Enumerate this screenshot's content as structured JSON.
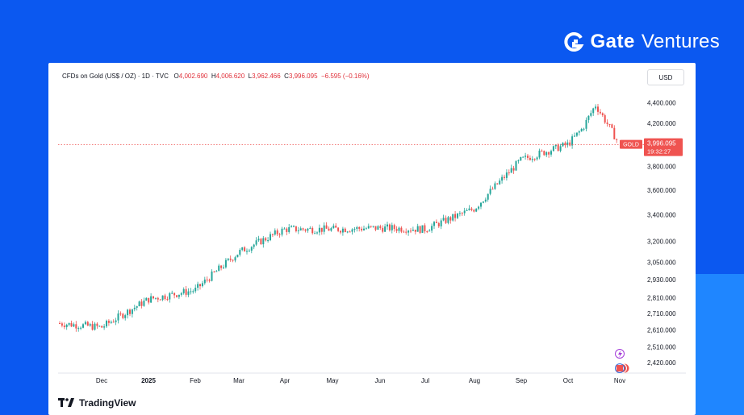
{
  "brand": {
    "name": "Gate",
    "suffix": "Ventures"
  },
  "header": {
    "symbol": "CFDs on Gold (US$ / OZ) · 1D · TVC",
    "o_label": "O",
    "o_value": "4,002.690",
    "h_label": "H",
    "h_value": "4,006.620",
    "l_label": "L",
    "l_value": "3,962.466",
    "c_label": "C",
    "c_value": "3,996.095",
    "change": "−6.595 (−0.16%)"
  },
  "currency_button": "USD",
  "price_badge": {
    "symbol": "GOLD",
    "price": "3,996.095",
    "countdown": "19:32:27"
  },
  "footer": {
    "logo_text": "TradingView"
  },
  "colors": {
    "up": "#26a69a",
    "down": "#ef5350",
    "background": "#0b58f0",
    "accent": "#1f86ff"
  },
  "chart_data": {
    "type": "candlestick",
    "title": "CFDs on Gold (US$ / OZ)",
    "interval": "1D",
    "source": "TVC",
    "scale": "log",
    "x_ticks": [
      "Dec",
      "2025",
      "Feb",
      "Mar",
      "Apr",
      "May",
      "Jun",
      "Jul",
      "Aug",
      "Sep",
      "Oct",
      "Nov"
    ],
    "y_ticks": [
      {
        "label": "4,400.000",
        "value": 4400
      },
      {
        "label": "4,200.000",
        "value": 4200
      },
      {
        "label": "3,800.000",
        "value": 3800
      },
      {
        "label": "3,600.000",
        "value": 3600
      },
      {
        "label": "3,400.000",
        "value": 3400
      },
      {
        "label": "3,200.000",
        "value": 3200
      },
      {
        "label": "3,050.000",
        "value": 3050
      },
      {
        "label": "2,930.000",
        "value": 2930
      },
      {
        "label": "2,810.000",
        "value": 2810
      },
      {
        "label": "2,710.000",
        "value": 2710
      },
      {
        "label": "2,610.000",
        "value": 2610
      },
      {
        "label": "2,510.000",
        "value": 2510
      },
      {
        "label": "2,420.000",
        "value": 2420
      }
    ],
    "ylim": [
      2380,
      4480
    ],
    "last_price": 3996.095,
    "monthly_closes": [
      {
        "month": "Nov 2024",
        "value": 2650
      },
      {
        "month": "Dec 2024",
        "value": 2625
      },
      {
        "month": "Jan 2025",
        "value": 2800
      },
      {
        "month": "Feb 2025",
        "value": 2860
      },
      {
        "month": "Mar 2025",
        "value": 3120
      },
      {
        "month": "Apr 2025",
        "value": 3290
      },
      {
        "month": "May 2025",
        "value": 3290
      },
      {
        "month": "Jun 2025",
        "value": 3300
      },
      {
        "month": "Jul 2025",
        "value": 3290
      },
      {
        "month": "Aug 2025",
        "value": 3450
      },
      {
        "month": "Sep 2025",
        "value": 3860
      },
      {
        "month": "Oct 2025",
        "value": 4000
      },
      {
        "month": "Nov 2025",
        "value": 3996
      }
    ]
  }
}
